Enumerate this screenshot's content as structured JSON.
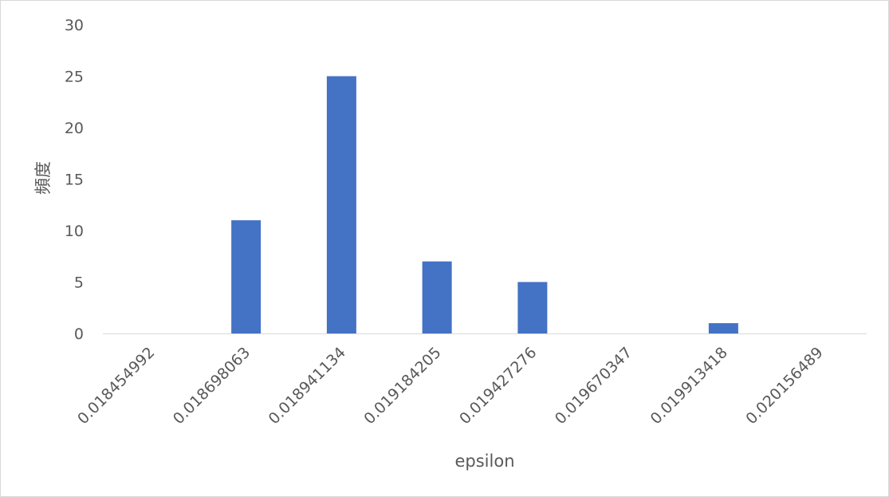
{
  "chart_data": {
    "type": "bar",
    "title": "",
    "xlabel": "epsilon",
    "ylabel": "頻度",
    "categories": [
      "0.018454992",
      "0.018698063",
      "0.018941134",
      "0.019184205",
      "0.019427276",
      "0.019670347",
      "0.019913418",
      "0.020156489"
    ],
    "values": [
      0,
      11,
      25,
      7,
      5,
      0,
      1,
      0
    ],
    "ylim": [
      0,
      30
    ],
    "yticks": [
      "0",
      "5",
      "10",
      "15",
      "20",
      "25",
      "30"
    ],
    "grid": false,
    "legend": "none",
    "colors": {
      "bar": "#4472C4",
      "axis": "#d9d9d9",
      "text": "#595959"
    }
  }
}
